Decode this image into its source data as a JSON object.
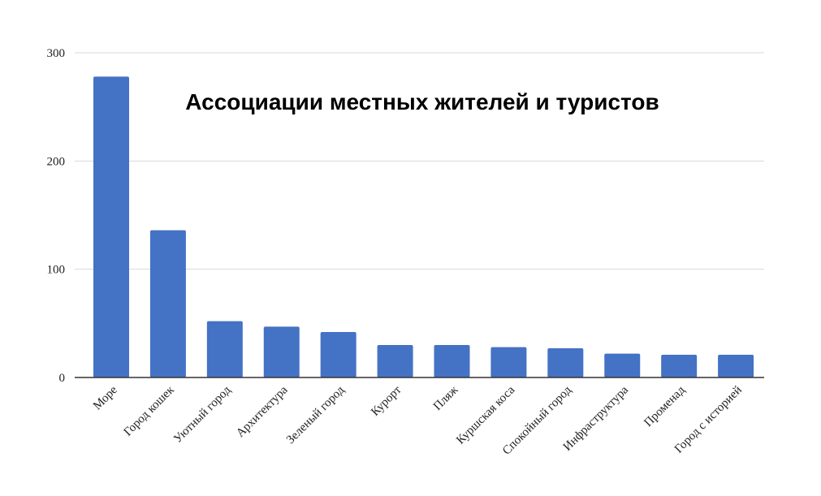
{
  "chart_data": {
    "type": "bar",
    "title": "Ассоциации местных жителей и туристов",
    "xlabel": "",
    "ylabel": "",
    "categories": [
      "Море",
      "Город кошек",
      "Уютный город",
      "Архитектура",
      "Зеленый город",
      "Курорт",
      "Пляж",
      "Куршская коса",
      "Спокойный город",
      "Инфраструктура",
      "Променад",
      "Город с историей"
    ],
    "values": [
      278,
      136,
      52,
      47,
      42,
      30,
      30,
      28,
      27,
      22,
      21,
      21
    ],
    "ylim": [
      0,
      300
    ],
    "yticks": [
      0,
      100,
      200,
      300
    ],
    "grid": true,
    "legend": "none",
    "colors": {
      "bar": "#4472c4",
      "grid": "#d9d9d9",
      "axis": "#333333"
    }
  }
}
